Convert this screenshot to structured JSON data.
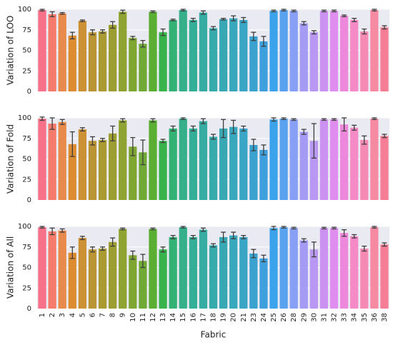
{
  "chart_data": [
    {
      "type": "bar",
      "ylabel": "Variation of LOO",
      "ylim": [
        0,
        100
      ],
      "yticks": [
        0,
        25,
        50,
        75,
        100
      ],
      "grid": true,
      "values": [
        99,
        94,
        95,
        68,
        86,
        72,
        73,
        81,
        97,
        65,
        58,
        97,
        72,
        87,
        99,
        87,
        96,
        77,
        88,
        89,
        87,
        67,
        61,
        98,
        99,
        98,
        83,
        72,
        98,
        98,
        92,
        87,
        73,
        99,
        78
      ],
      "errors": [
        1,
        3,
        1,
        4,
        1,
        3,
        2,
        4,
        2,
        2,
        4,
        1,
        4,
        1,
        1,
        2,
        2,
        2,
        1,
        3,
        3,
        5,
        6,
        1,
        1,
        1,
        2,
        2,
        1,
        1,
        1,
        2,
        3,
        1,
        2
      ]
    },
    {
      "type": "bar",
      "ylabel": "Variation of Fold",
      "ylim": [
        0,
        100
      ],
      "yticks": [
        0,
        25,
        50,
        75,
        100
      ],
      "grid": true,
      "values": [
        99,
        93,
        95,
        68,
        86,
        72,
        73,
        81,
        97,
        65,
        58,
        97,
        72,
        87,
        99,
        87,
        96,
        77,
        87,
        89,
        87,
        67,
        61,
        98,
        99,
        98,
        83,
        72,
        98,
        98,
        92,
        88,
        73,
        99,
        78
      ],
      "errors": [
        2,
        7,
        3,
        15,
        2,
        5,
        2,
        9,
        2,
        11,
        15,
        2,
        2,
        3,
        1,
        3,
        3,
        3,
        11,
        8,
        3,
        7,
        6,
        2,
        1,
        1,
        3,
        21,
        1,
        1,
        8,
        3,
        5,
        1,
        2
      ]
    },
    {
      "type": "bar",
      "ylabel": "Variation of All",
      "xlabel": "Fabric",
      "ylim": [
        0,
        100
      ],
      "yticks": [
        0,
        25,
        50,
        75,
        100
      ],
      "grid": true,
      "categories": [
        "1",
        "2",
        "3",
        "4",
        "5",
        "6",
        "7",
        "8",
        "9",
        "10",
        "11",
        "12",
        "13",
        "14",
        "15",
        "16",
        "17",
        "18",
        "19",
        "20",
        "21",
        "23",
        "24",
        "25",
        "26",
        "28",
        "29",
        "30",
        "31",
        "32",
        "33",
        "34",
        "35",
        "36",
        "38"
      ],
      "values": [
        99,
        94,
        95,
        68,
        86,
        72,
        73,
        81,
        97,
        65,
        58,
        97,
        72,
        87,
        99,
        87,
        96,
        77,
        87,
        89,
        87,
        67,
        61,
        98,
        99,
        98,
        83,
        72,
        98,
        98,
        92,
        88,
        73,
        99,
        78
      ],
      "errors": [
        1,
        4,
        2,
        7,
        2,
        3,
        2,
        5,
        1,
        5,
        8,
        1,
        3,
        2,
        1,
        2,
        2,
        2,
        6,
        4,
        2,
        5,
        4,
        2,
        1,
        1,
        2,
        9,
        1,
        1,
        4,
        2,
        3,
        1,
        2
      ],
      "colors": [
        "#f77189",
        "#f57c6c",
        "#e88a4c",
        "#de8c32",
        "#cc9035",
        "#bb9533",
        "#aa9a32",
        "#9c9e32",
        "#8ea332",
        "#80a632",
        "#70a935",
        "#5aae31",
        "#38b34b",
        "#34b276",
        "#35b08a",
        "#35ae98",
        "#36aca3",
        "#37aaac",
        "#38a9b4",
        "#39a7bc",
        "#3aa5c5",
        "#3ba2cf",
        "#3d9fdb",
        "#3ba3ec",
        "#58a2f0",
        "#879ff4",
        "#a69bf4",
        "#b898f3",
        "#cc92f2",
        "#e08df0",
        "#ee88dc",
        "#f58ac7",
        "#f58bb5",
        "#f68aa3",
        "#f57d95"
      ]
    }
  ]
}
